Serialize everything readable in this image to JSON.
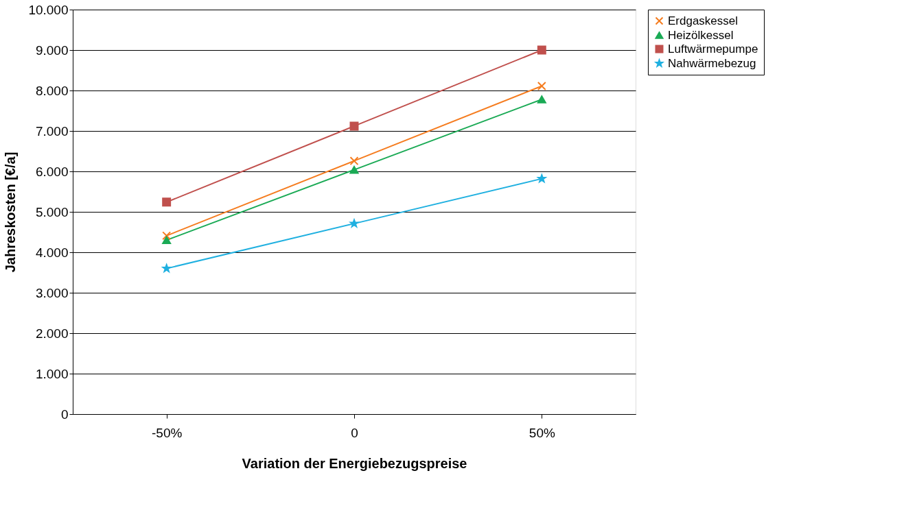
{
  "chart_data": {
    "type": "line",
    "xlabel": "Variation der Energiebezugspreise",
    "ylabel": "Jahreskosten  [€/a]",
    "categories": [
      "-50%",
      "0",
      "50%"
    ],
    "series": [
      {
        "name": "Erdgaskessel",
        "color": "#f57c1f",
        "marker": "cross",
        "values": [
          4410,
          6260,
          8110
        ]
      },
      {
        "name": "Heizölkessel",
        "color": "#1aaa55",
        "marker": "triangle",
        "values": [
          4300,
          6040,
          7780
        ]
      },
      {
        "name": "Luftwärmepumpe",
        "color": "#c0504d",
        "marker": "square",
        "values": [
          5240,
          7120,
          9000
        ]
      },
      {
        "name": "Nahwärmebezug",
        "color": "#1fb0e0",
        "marker": "star",
        "values": [
          3600,
          4710,
          5820
        ]
      }
    ],
    "ylim": [
      0,
      10000
    ],
    "yticks": [
      0,
      {
        "value": 1000,
        "label": "1.000"
      },
      {
        "value": 2000,
        "label": "2.000"
      },
      {
        "value": 3000,
        "label": "3.000"
      },
      {
        "value": 4000,
        "label": "4.000"
      },
      {
        "value": 5000,
        "label": "5.000"
      },
      {
        "value": 6000,
        "label": "6.000"
      },
      {
        "value": 7000,
        "label": "7.000"
      },
      {
        "value": 8000,
        "label": "8.000"
      },
      {
        "value": 9000,
        "label": "9.000"
      },
      {
        "value": 10000,
        "label": "10.000"
      }
    ],
    "grid": "y",
    "legend": "right",
    "line_style": "solid"
  }
}
